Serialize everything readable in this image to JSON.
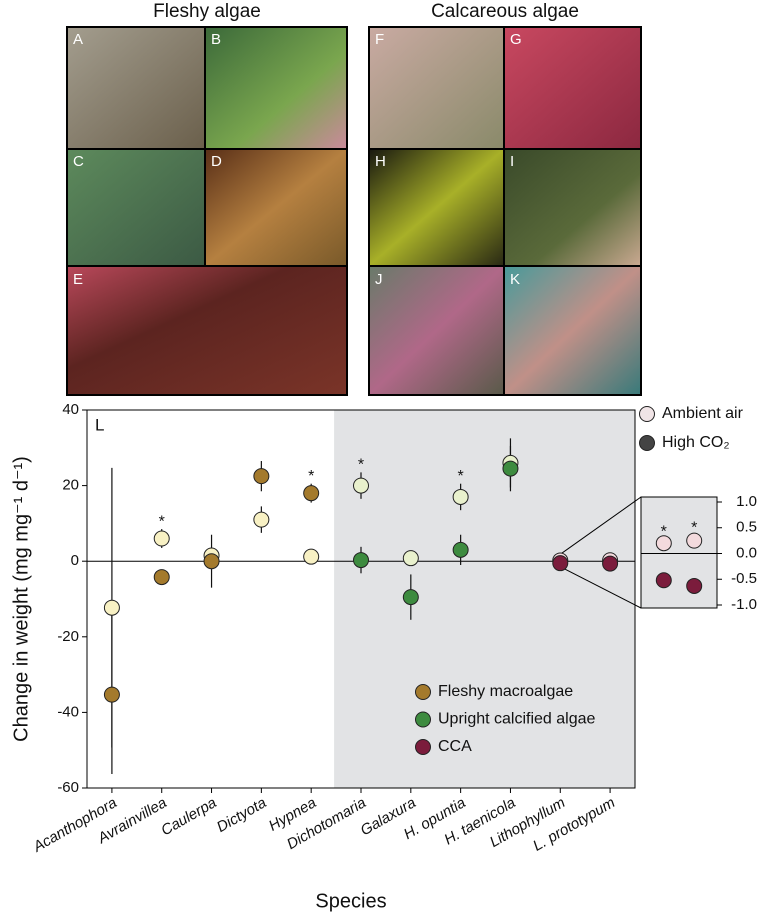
{
  "photos": {
    "fleshy": {
      "title": "Fleshy algae",
      "labels": [
        "A",
        "B",
        "C",
        "D",
        "E"
      ]
    },
    "calcareous": {
      "title": "Calcareous algae",
      "labels": [
        "F",
        "G",
        "H",
        "I",
        "J",
        "K"
      ]
    }
  },
  "chart_data": {
    "type": "dot",
    "panel_label": "L",
    "x_label": "Species",
    "y_label": "Change in weight (mg mg⁻¹ d⁻¹)",
    "categories": [
      "Acanthophora",
      "Avrainvillea",
      "Caulerpa",
      "Dictyota",
      "Hypnea",
      "Dichotomaria",
      "Galaxura",
      "H. opuntia",
      "H. taenicola",
      "Lithophyllum",
      "L. prototypum"
    ],
    "category_groups": [
      0,
      0,
      0,
      0,
      0,
      1,
      1,
      1,
      1,
      2,
      2
    ],
    "groups": [
      {
        "name": "Fleshy macroalgae",
        "colors": [
          "#f8f1c4",
          "#a47a2c"
        ],
        "shaded": false,
        "inset": false
      },
      {
        "name": "Upright calcified algae",
        "colors": [
          "#e9f1cd",
          "#3d8b3f"
        ],
        "shaded": true,
        "inset": false
      },
      {
        "name": "CCA",
        "colors": [
          "#f3dadd",
          "#7b1c3c"
        ],
        "shaded": true,
        "inset": true
      }
    ],
    "series": [
      {
        "name": "Ambient air",
        "color": "#f0e4e6",
        "values": [
          -12.3,
          6,
          1.5,
          11,
          1.2,
          20,
          0.8,
          17,
          26,
          0.2,
          0.25
        ],
        "errors": [
          37,
          2.5,
          2,
          3.5,
          1,
          3.5,
          1,
          3.5,
          6.5,
          0.08,
          0.1
        ],
        "significance": [
          null,
          "*",
          null,
          null,
          null,
          "*",
          null,
          "*",
          null,
          "*",
          "*"
        ]
      },
      {
        "name": "High CO₂",
        "color": "#444444",
        "values": [
          -35.3,
          -4.2,
          0,
          22.5,
          18,
          0.3,
          -9.5,
          3,
          24.5,
          -0.52,
          -0.63
        ],
        "errors": [
          21,
          1.5,
          7,
          4,
          2.5,
          3.5,
          6,
          4,
          6,
          0.08,
          0.12
        ],
        "significance": [
          null,
          null,
          null,
          null,
          "*",
          null,
          null,
          null,
          null,
          null,
          null
        ]
      }
    ],
    "ylim": [
      -60,
      40
    ],
    "yticks": [
      -60,
      -40,
      -20,
      0,
      20,
      40
    ],
    "zero_line": true,
    "inset": {
      "ylim": [
        -1,
        1
      ],
      "yticks": [
        {
          "value": 1,
          "label": "1.0"
        },
        {
          "value": 0.5,
          "label": "0.5"
        },
        {
          "value": 0,
          "label": "0.0"
        },
        {
          "value": -0.5,
          "label": "-0.5"
        },
        {
          "value": -1,
          "label": "-1.0"
        }
      ]
    }
  }
}
